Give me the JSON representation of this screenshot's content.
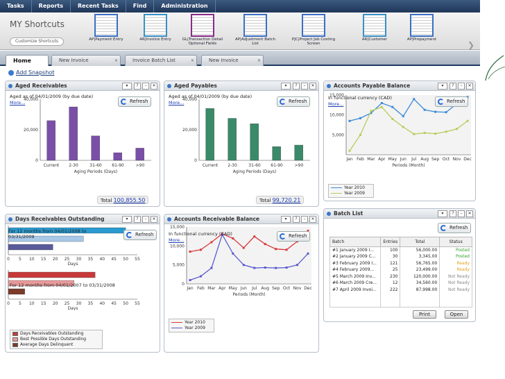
{
  "menu": [
    "Tasks",
    "Reports",
    "Recent Tasks",
    "Find",
    "Administration"
  ],
  "shortcuts_title": "MY Shortcuts",
  "customize_label": "Customize Shortcuts",
  "shortcuts": [
    {
      "label": "AP|Payment Entry",
      "color": "#3a6fc4"
    },
    {
      "label": "AR|Invoice Entry",
      "color": "#3a8fc4"
    },
    {
      "label": "GL|Transaction Detail Optional Fields",
      "color": "#8a2a8a"
    },
    {
      "label": "AP|Adjustment Batch List",
      "color": "#3a6fc4"
    },
    {
      "label": "PJC|Project Job Costing Screen",
      "color": "#3a6fc4"
    },
    {
      "label": "AR|Customer",
      "color": "#3a8fc4"
    },
    {
      "label": "AP|Prepayment",
      "color": "#3a6fc4"
    }
  ],
  "tabs": [
    "Home",
    "New Invoice",
    "Invoice Batch List",
    "New Invoice"
  ],
  "add_snapshot": "Add Snapshot",
  "refresh_label": "Refresh",
  "aged_receivables": {
    "title": "Aged Receivables",
    "subtitle": "Aged as of 04/01/2009 (by due date)",
    "more": "More...",
    "total_label": "Total",
    "total_value": "100,855.50",
    "chart_data": {
      "type": "bar",
      "categories": [
        "Current",
        "2-30",
        "31-60",
        "61-90",
        ">90"
      ],
      "values": [
        26000,
        35000,
        16000,
        5000,
        8000
      ],
      "ylim": [
        0,
        40000
      ],
      "yticks": [
        "40,000",
        "20,000",
        "0"
      ],
      "xlabel": "Aging Periods (Days)",
      "color": "#7a4fa8"
    }
  },
  "aged_payables": {
    "title": "Aged Payables",
    "subtitle": "Aged as of 04/01/2009 (by due date)",
    "more": "More...",
    "total_label": "Total",
    "total_value": "99,720.21",
    "chart_data": {
      "type": "bar",
      "categories": [
        "Current",
        "2-30",
        "31-60",
        "61-90",
        ">90"
      ],
      "values": [
        34000,
        27500,
        24000,
        9000,
        10000
      ],
      "ylim": [
        0,
        40000
      ],
      "yticks": [
        "40,000",
        "20,000",
        "0"
      ],
      "xlabel": "Aging Periods (Days)",
      "color": "#3a8a6a"
    }
  },
  "ap_balance": {
    "title": "Accounts Payable Balance",
    "subtitle": "In functional currency (CAD)",
    "more": "More...",
    "chart_data": {
      "type": "line",
      "categories": [
        "Jan",
        "Feb",
        "Mar",
        "Apr",
        "May",
        "Jun",
        "Jul",
        "Aug",
        "Sep",
        "Oct",
        "Nov",
        "Dec"
      ],
      "xlabel": "Periods (Month)",
      "yticks": [
        "15,000",
        "10,000",
        "5,000"
      ],
      "ylim": [
        0,
        15000
      ],
      "series": [
        {
          "name": "Year 2010",
          "color": "#3a8ad8",
          "values": [
            8500,
            9200,
            10500,
            13000,
            12000,
            9700,
            14000,
            11300,
            10800,
            10700,
            12800,
            14500
          ]
        },
        {
          "name": "Year 2009",
          "color": "#b8cc5a",
          "values": [
            1000,
            5000,
            11000,
            12000,
            9000,
            7000,
            5200,
            5500,
            5300,
            5800,
            6500,
            8500
          ]
        }
      ]
    }
  },
  "days_outstanding": {
    "title": "Days Receivables Outstanding",
    "subtitle1": "For 12 months from 04/01/2008 to 03/31/2009",
    "subtitle2": "For 12 months from 04/01/2007 to 03/31/2008",
    "xlabel": "Days",
    "chart_data": [
      {
        "type": "bar",
        "orientation": "horizontal",
        "xlim": [
          0,
          55
        ],
        "xticks": [
          "0",
          "5",
          "10",
          "15",
          "20",
          "25",
          "30",
          "35",
          "40",
          "45",
          "50",
          "55"
        ],
        "values": [
          50,
          32,
          19
        ],
        "colors": [
          "#2a9ad0",
          "#a8c8e8",
          "#5a5a9a"
        ]
      },
      {
        "type": "bar",
        "orientation": "horizontal",
        "xlim": [
          0,
          55
        ],
        "xticks": [
          "0",
          "5",
          "10",
          "15",
          "20",
          "25",
          "30",
          "35",
          "40",
          "45",
          "50",
          "55"
        ],
        "values": [
          37,
          28,
          7
        ],
        "colors": [
          "#c83a3a",
          "#e89a9a",
          "#7a3a2a"
        ]
      }
    ],
    "legend": [
      {
        "name": "Days Receivables Outstanding",
        "color": "#c83a3a"
      },
      {
        "name": "Best Possible Days Outstanding",
        "color": "#e89a9a"
      },
      {
        "name": "Average Days Delinquent",
        "color": "#7a3a2a"
      }
    ]
  },
  "ar_balance": {
    "title": "Accounts Receivable Balance",
    "subtitle": "In functional currency (CAD)",
    "more": "More...",
    "chart_data": {
      "type": "line",
      "categories": [
        "Jan",
        "Feb",
        "Mar",
        "Apr",
        "May",
        "Jun",
        "Jul",
        "Aug",
        "Sep",
        "Oct",
        "Nov",
        "Dec"
      ],
      "xlabel": "Periods (Month)",
      "yticks": [
        "15,000",
        "10,000",
        "5,000",
        "0"
      ],
      "ylim": [
        0,
        15000
      ],
      "series": [
        {
          "name": "Year 2010",
          "color": "#d83a3a",
          "values": [
            8500,
            9000,
            11000,
            13200,
            12000,
            9500,
            12500,
            10500,
            9200,
            9000,
            11200,
            14000
          ]
        },
        {
          "name": "Year 2009",
          "color": "#5a5ad0",
          "values": [
            1000,
            2000,
            4200,
            13000,
            8000,
            5000,
            4200,
            4300,
            4200,
            4300,
            5000,
            8000
          ]
        }
      ]
    }
  },
  "batch_list": {
    "title": "Batch List",
    "headers": [
      "Batch",
      "Entries",
      "Total",
      "Status"
    ],
    "rows": [
      [
        "#1 January 2009 I...",
        "100",
        "56,000.00",
        "Posted"
      ],
      [
        "#2 January 2009 C...",
        "30",
        "3,345.00",
        "Posted"
      ],
      [
        "#3 February 2009 I...",
        "121",
        "56,765.00",
        "Ready"
      ],
      [
        "#4 February 2009...",
        "25",
        "23,499.00",
        "Ready"
      ],
      [
        "#5 March 2009 Inv...",
        "230",
        "120,000.00",
        "Not Ready"
      ],
      [
        "#6 March 2009 Cre...",
        "12",
        "34,560.00",
        "Not Ready"
      ],
      [
        "#7 April 2009 Invoi...",
        "222",
        "87,998.00",
        "Not Ready"
      ]
    ],
    "status_colors": {
      "Posted": "#3aa03a",
      "Ready": "#e0a020",
      "Not Ready": "#888888"
    },
    "print_label": "Print",
    "open_label": "Open"
  }
}
